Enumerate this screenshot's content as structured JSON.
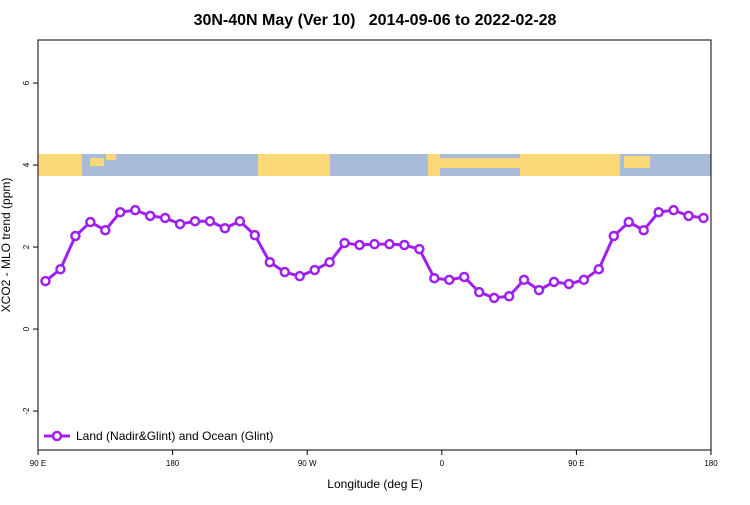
{
  "chart_data": {
    "type": "line",
    "title": "30N-40N May (Ver 10)   2014-09-06 to 2022-02-28",
    "x_label": "Longitude (deg E)",
    "y_label": "XCO2 - MLO trend (ppm)",
    "x": [
      95,
      105,
      115,
      125,
      135,
      145,
      155,
      165,
      175,
      185,
      195,
      205,
      215,
      225,
      235,
      245,
      255,
      265,
      275,
      285,
      295,
      305,
      315,
      325,
      335,
      345,
      355,
      365,
      375,
      385,
      395,
      405,
      415,
      425,
      435,
      445,
      455,
      465,
      475,
      485,
      495,
      505,
      515,
      525,
      535
    ],
    "series": [
      {
        "name": "Land (Nadir&Glint) and Ocean (Glint)",
        "color": "#a020f0",
        "values": [
          1.17,
          1.46,
          2.27,
          2.61,
          2.41,
          2.85,
          2.9,
          2.76,
          2.71,
          2.56,
          2.63,
          2.63,
          2.46,
          2.63,
          2.29,
          1.63,
          1.39,
          1.29,
          1.44,
          1.63,
          2.1,
          2.05,
          2.07,
          2.07,
          2.05,
          1.95,
          1.24,
          1.2,
          1.27,
          0.9,
          0.76,
          0.8,
          1.2,
          0.95,
          1.15,
          1.1,
          1.2,
          1.46,
          2.27,
          2.61,
          2.41,
          2.85,
          2.9,
          2.76,
          2.71
        ]
      }
    ],
    "xlim": [
      90,
      540
    ],
    "xticks": [
      {
        "value": 90,
        "label": "90 E"
      },
      180,
      {
        "value": 270,
        "label": "90 W"
      },
      {
        "value": 360,
        "label": "0"
      },
      {
        "value": 450,
        "label": "90 E"
      },
      {
        "value": 540,
        "label": "180"
      }
    ],
    "ylim": [
      -2.95,
      7.05
    ],
    "yticks": [
      -2,
      0,
      2,
      4,
      6
    ],
    "legend": "bottom left"
  }
}
